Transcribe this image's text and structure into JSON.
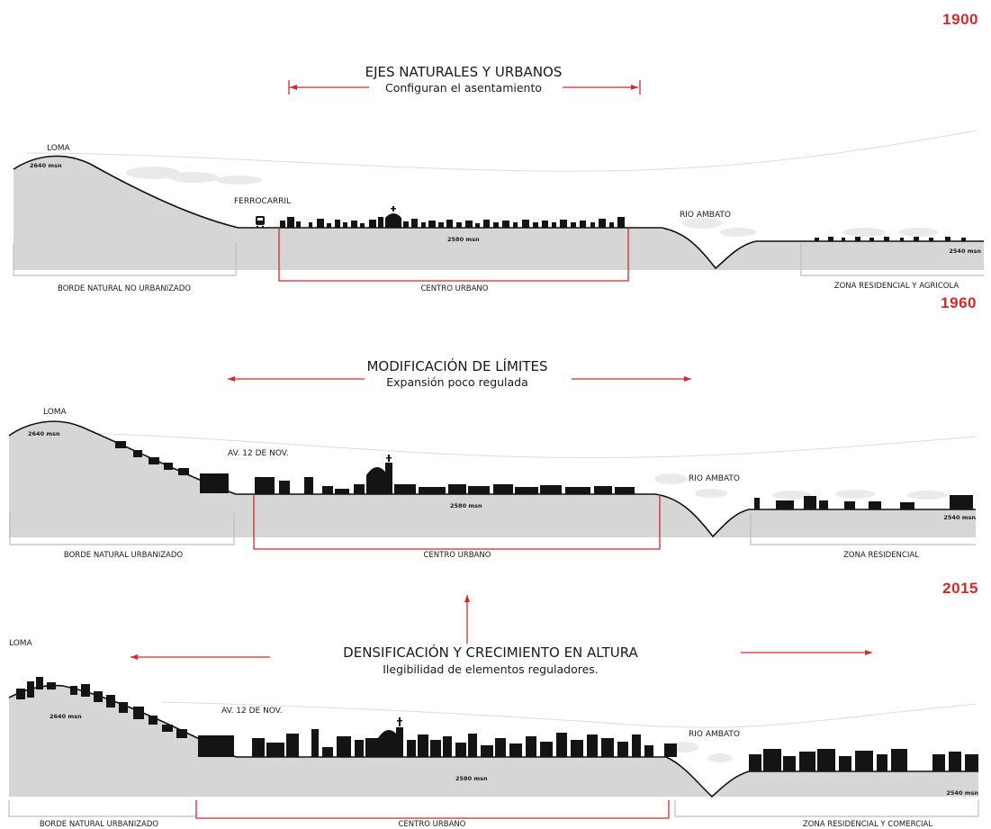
{
  "panels": [
    {
      "year": "1900",
      "heading": "EJES NATURALES Y URBANOS",
      "subheading": "Configuran el asentamiento",
      "loma": "LOMA",
      "loma_alt": "2640 msn",
      "landmark": "FERROCARRIL",
      "center_alt": "2580 msn",
      "river": "RIO AMBATO",
      "east_alt": "2540 msn",
      "zone_left": "BORDE NATURAL NO URBANIZADO",
      "zone_center": "CENTRO URBANO",
      "zone_right": "ZONA RESIDENCIAL Y AGRICOLA"
    },
    {
      "year": "1960",
      "heading": "MODIFICACIÓN DE LÍMITES",
      "subheading": "Expansión poco regulada",
      "loma": "LOMA",
      "loma_alt": "2640 msn",
      "landmark": "AV. 12 DE NOV.",
      "center_alt": "2580 msn",
      "river": "RIO AMBATO",
      "east_alt": "2540 msn",
      "zone_left": "BORDE NATURAL URBANIZADO",
      "zone_center": "CENTRO URBANO",
      "zone_right": "ZONA RESIDENCIAL"
    },
    {
      "year": "2015",
      "heading": "DENSIFICACIÓN Y CRECIMIENTO EN ALTURA",
      "subheading": "Ilegibilidad de elementos reguladores.",
      "loma": "LOMA",
      "loma_alt": "2640 msn",
      "landmark": "AV. 12 DE NOV.",
      "center_alt": "2580 msn",
      "river": "RIO AMBATO",
      "east_alt": "2540 msn",
      "zone_left": "BORDE NATURAL URBANIZADO",
      "zone_center": "CENTRO URBANO",
      "zone_right": "ZONA RESIDENCIAL Y COMERCIAL"
    }
  ],
  "colors": {
    "accent": "#d8262b",
    "ground": "#d6d6d6",
    "buildings": "#141414"
  }
}
